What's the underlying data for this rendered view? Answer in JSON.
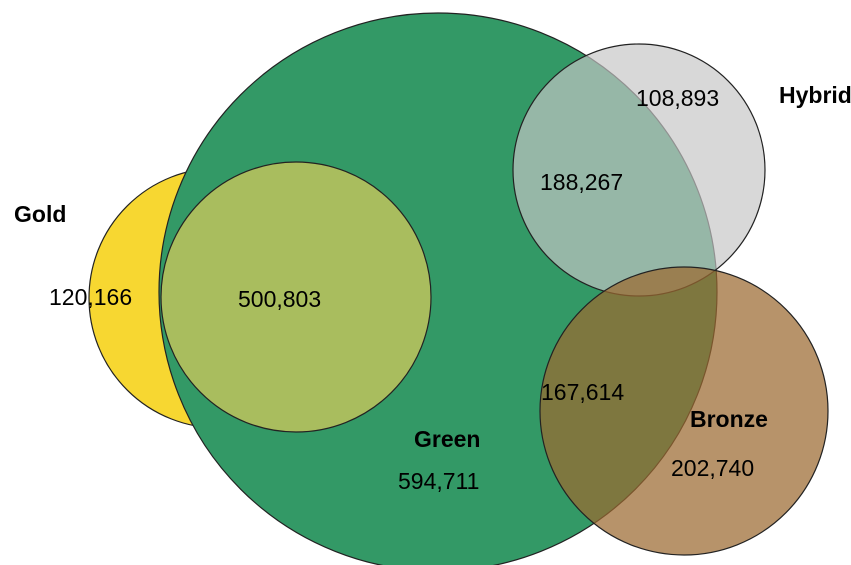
{
  "sets": {
    "green": {
      "label": "Green",
      "color": "#339966"
    },
    "gold": {
      "label": "Gold",
      "color": "#f7d731"
    },
    "hybrid": {
      "label": "Hybrid",
      "color": "#bdbdbd"
    },
    "bronze": {
      "label": "Bronze",
      "color": "#9b6a30"
    }
  },
  "regions": {
    "gold_only": "120,166",
    "gold_green": "500,803",
    "green_only": "594,711",
    "green_hybrid": "188,267",
    "hybrid_only": "108,893",
    "green_bronze": "167,614",
    "bronze_only": "202,740"
  }
}
